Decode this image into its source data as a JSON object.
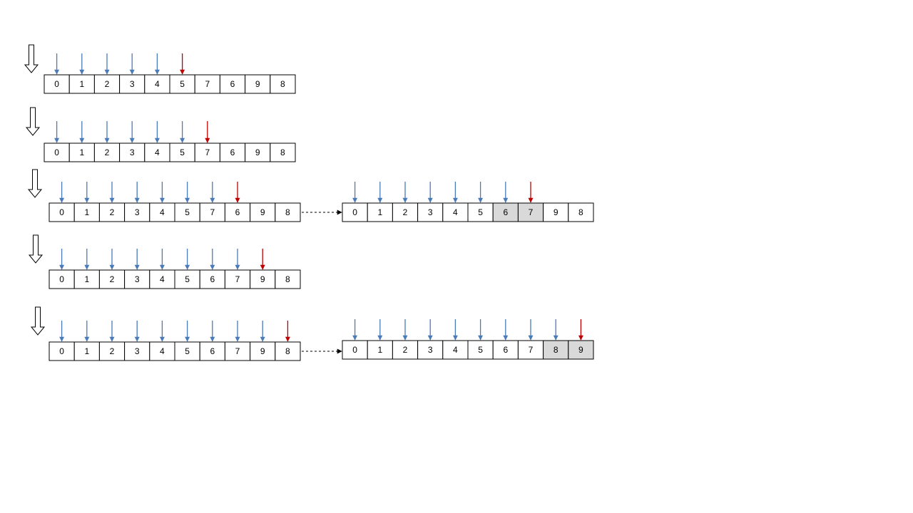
{
  "colors": {
    "pointer_visited": "#4a7ab8",
    "pointer_current": "#c00000",
    "cell_highlight": "#d9d9d9",
    "cell_border": "#000000",
    "step_arrow_fill": "#ffffff"
  },
  "steps": [
    {
      "cells": [
        "0",
        "1",
        "2",
        "3",
        "4",
        "5",
        "7",
        "6",
        "9",
        "8"
      ],
      "pointers": [
        "visited",
        "visited",
        "visited",
        "visited",
        "visited",
        "current",
        "none",
        "none",
        "none",
        "none"
      ],
      "highlight": []
    },
    {
      "cells": [
        "0",
        "1",
        "2",
        "3",
        "4",
        "5",
        "7",
        "6",
        "9",
        "8"
      ],
      "pointers": [
        "visited",
        "visited",
        "visited",
        "visited",
        "visited",
        "visited",
        "current",
        "none",
        "none",
        "none"
      ],
      "highlight": []
    },
    {
      "cells": [
        "0",
        "1",
        "2",
        "3",
        "4",
        "5",
        "7",
        "6",
        "9",
        "8"
      ],
      "pointers": [
        "visited",
        "visited",
        "visited",
        "visited",
        "visited",
        "visited",
        "visited",
        "current",
        "none",
        "none"
      ],
      "highlight": [],
      "result": {
        "cells": [
          "0",
          "1",
          "2",
          "3",
          "4",
          "5",
          "6",
          "7",
          "9",
          "8"
        ],
        "pointers": [
          "visited",
          "visited",
          "visited",
          "visited",
          "visited",
          "visited",
          "visited",
          "current",
          "none",
          "none"
        ],
        "highlight": [
          6,
          7
        ]
      }
    },
    {
      "cells": [
        "0",
        "1",
        "2",
        "3",
        "4",
        "5",
        "6",
        "7",
        "9",
        "8"
      ],
      "pointers": [
        "visited",
        "visited",
        "visited",
        "visited",
        "visited",
        "visited",
        "visited",
        "visited",
        "current",
        "none"
      ],
      "highlight": []
    },
    {
      "cells": [
        "0",
        "1",
        "2",
        "3",
        "4",
        "5",
        "6",
        "7",
        "9",
        "8"
      ],
      "pointers": [
        "visited",
        "visited",
        "visited",
        "visited",
        "visited",
        "visited",
        "visited",
        "visited",
        "visited",
        "current"
      ],
      "highlight": [],
      "result": {
        "cells": [
          "0",
          "1",
          "2",
          "3",
          "4",
          "5",
          "6",
          "7",
          "8",
          "9"
        ],
        "pointers": [
          "visited",
          "visited",
          "visited",
          "visited",
          "visited",
          "visited",
          "visited",
          "visited",
          "visited",
          "current"
        ],
        "highlight": [
          8,
          9
        ]
      }
    }
  ]
}
